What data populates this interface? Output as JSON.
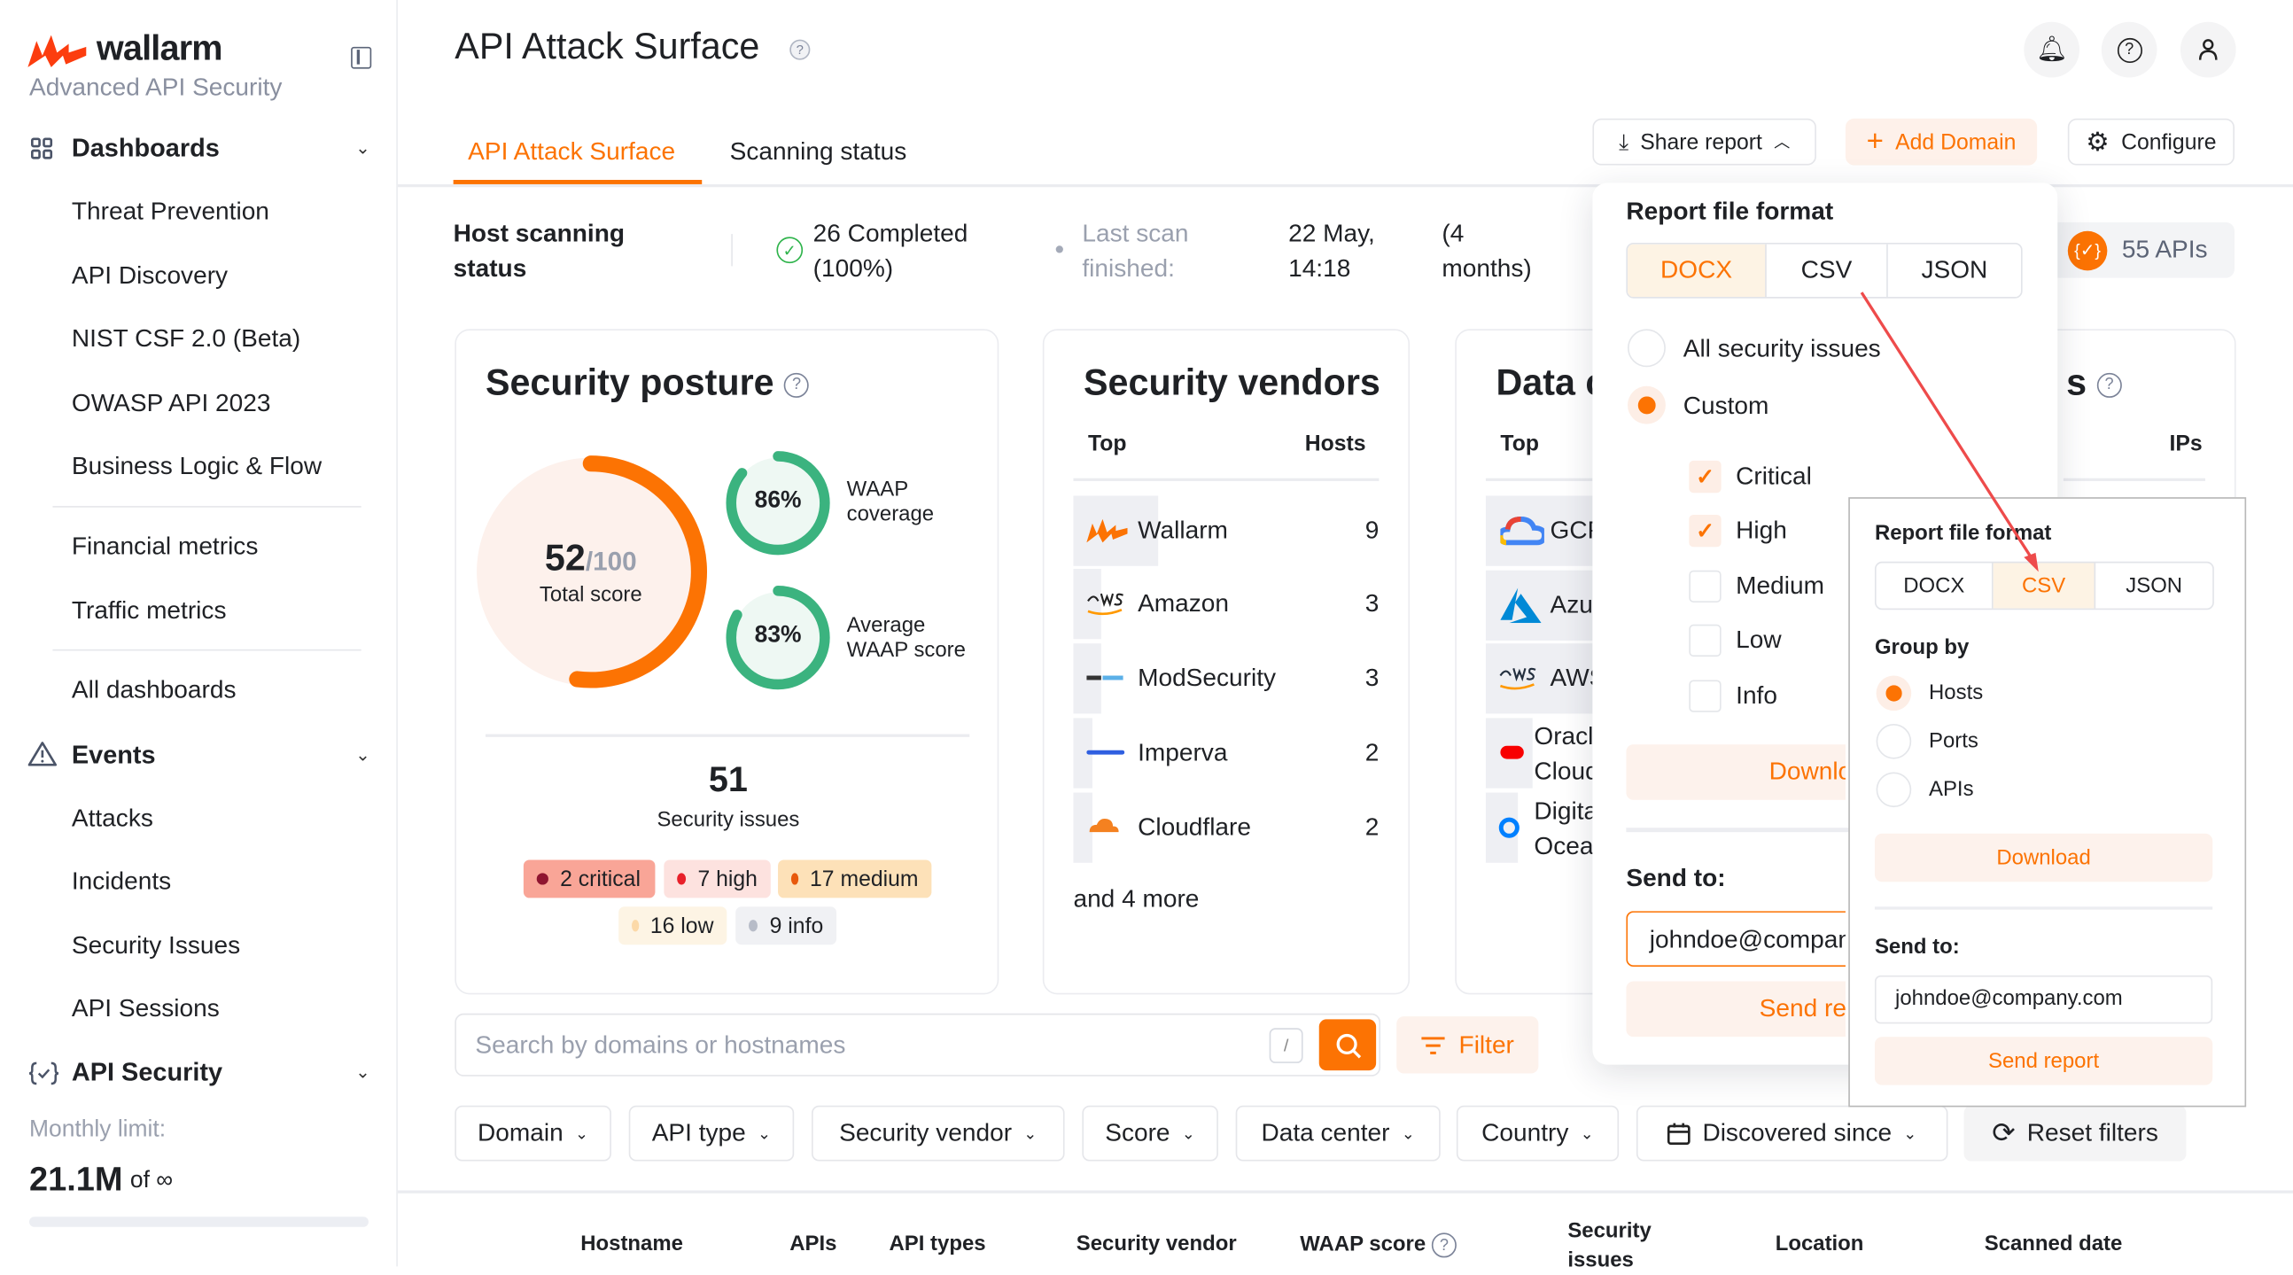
{
  "brand": {
    "name": "wallarm",
    "subtitle": "Advanced API Security"
  },
  "sidebar": {
    "sections": [
      {
        "label": "Dashboards",
        "items": [
          "Threat Prevention",
          "API Discovery",
          "NIST CSF 2.0 (Beta)",
          "OWASP API 2023",
          "Business Logic & Flow",
          "Financial metrics",
          "Traffic metrics",
          "All dashboards"
        ]
      },
      {
        "label": "Events",
        "items": [
          "Attacks",
          "Incidents",
          "Security Issues",
          "API Sessions"
        ]
      },
      {
        "label": "API Security",
        "items": []
      }
    ],
    "monthly_limit_label": "Monthly limit:",
    "monthly_limit_value": "21.1M",
    "monthly_limit_of": "of ∞"
  },
  "header": {
    "title": "API Attack Surface",
    "tabs": [
      {
        "label": "API Attack Surface",
        "active": true
      },
      {
        "label": "Scanning status",
        "active": false
      }
    ],
    "share_report": "Share report",
    "add_domain": "Add Domain",
    "configure": "Configure"
  },
  "scan_status": {
    "label": "Host scanning status",
    "completed": "26 Completed (100%)",
    "last_scan_label": "Last scan finished:",
    "last_scan_date": "22 May, 14:18",
    "ago": "(4 months)",
    "apis": "55 APIs"
  },
  "posture": {
    "title": "Security posture",
    "score": "52",
    "score_max": "/100",
    "score_label": "Total score",
    "score_value": 52,
    "waap_coverage": "86%",
    "waap_coverage_value": 86,
    "waap_coverage_label": "WAAP coverage",
    "avg_waap": "83%",
    "avg_waap_value": 83,
    "avg_waap_label": "Average WAAP score",
    "issues_count": "51",
    "issues_label": "Security issues",
    "badges": [
      {
        "label": "2 critical",
        "color": "#8f1530"
      },
      {
        "label": "7 high",
        "color": "#e8202a"
      },
      {
        "label": "17 medium",
        "color": "#e8590c"
      },
      {
        "label": "16 low",
        "color": "#fcd9a8"
      },
      {
        "label": "9 info",
        "color": "#b7bcc8"
      }
    ]
  },
  "vendors": {
    "title": "Security vendors",
    "col_top": "Top",
    "col_hosts": "Hosts",
    "rows": [
      {
        "name": "Wallarm",
        "hosts": "9"
      },
      {
        "name": "Amazon",
        "hosts": "3"
      },
      {
        "name": "ModSecurity",
        "hosts": "3"
      },
      {
        "name": "Imperva",
        "hosts": "2"
      },
      {
        "name": "Cloudflare",
        "hosts": "2"
      }
    ],
    "more": "and 4 more"
  },
  "datacenters": {
    "title": "Data c",
    "col_top": "Top",
    "rows": [
      "GCP",
      "Azure",
      "AWS",
      "Oracle Cloud",
      "Digital Ocean"
    ]
  },
  "fourth_card": {
    "title": "s",
    "col": "IPs"
  },
  "search": {
    "placeholder": "Search by domains or hostnames",
    "shortcut": "/",
    "filter": "Filter"
  },
  "filters": [
    "Domain",
    "API type",
    "Security vendor",
    "Score",
    "Data center",
    "Country",
    "Discovered since",
    "Reset filters"
  ],
  "table": {
    "columns": [
      "Hostname",
      "APIs",
      "API types",
      "Security vendor",
      "WAAP score",
      "Security issues",
      "Location",
      "Scanned date"
    ]
  },
  "share_dropdown": {
    "format_label": "Report file format",
    "formats": [
      "DOCX",
      "CSV",
      "JSON"
    ],
    "selected_format": "DOCX",
    "scope_options": [
      "All security issues",
      "Custom"
    ],
    "selected_scope": "Custom",
    "severities": [
      {
        "label": "Critical",
        "checked": true
      },
      {
        "label": "High",
        "checked": true
      },
      {
        "label": "Medium",
        "checked": false
      },
      {
        "label": "Low",
        "checked": false
      },
      {
        "label": "Info",
        "checked": false
      }
    ],
    "download": "Download",
    "send_to_label": "Send to:",
    "email": "johndoe@company.com",
    "send_report": "Send report"
  },
  "csv_callout": {
    "format_label": "Report file format",
    "formats": [
      "DOCX",
      "CSV",
      "JSON"
    ],
    "selected_format": "CSV",
    "group_by_label": "Group by",
    "group_by": [
      "Hosts",
      "Ports",
      "APIs"
    ],
    "selected_group": "Hosts",
    "download": "Download",
    "send_to_label": "Send to:",
    "email": "johndoe@company.com",
    "send_report": "Send report"
  },
  "colors": {
    "accent": "#fc7303",
    "green": "#3bb37f",
    "annotation_arrow": "#ee4b4b"
  }
}
